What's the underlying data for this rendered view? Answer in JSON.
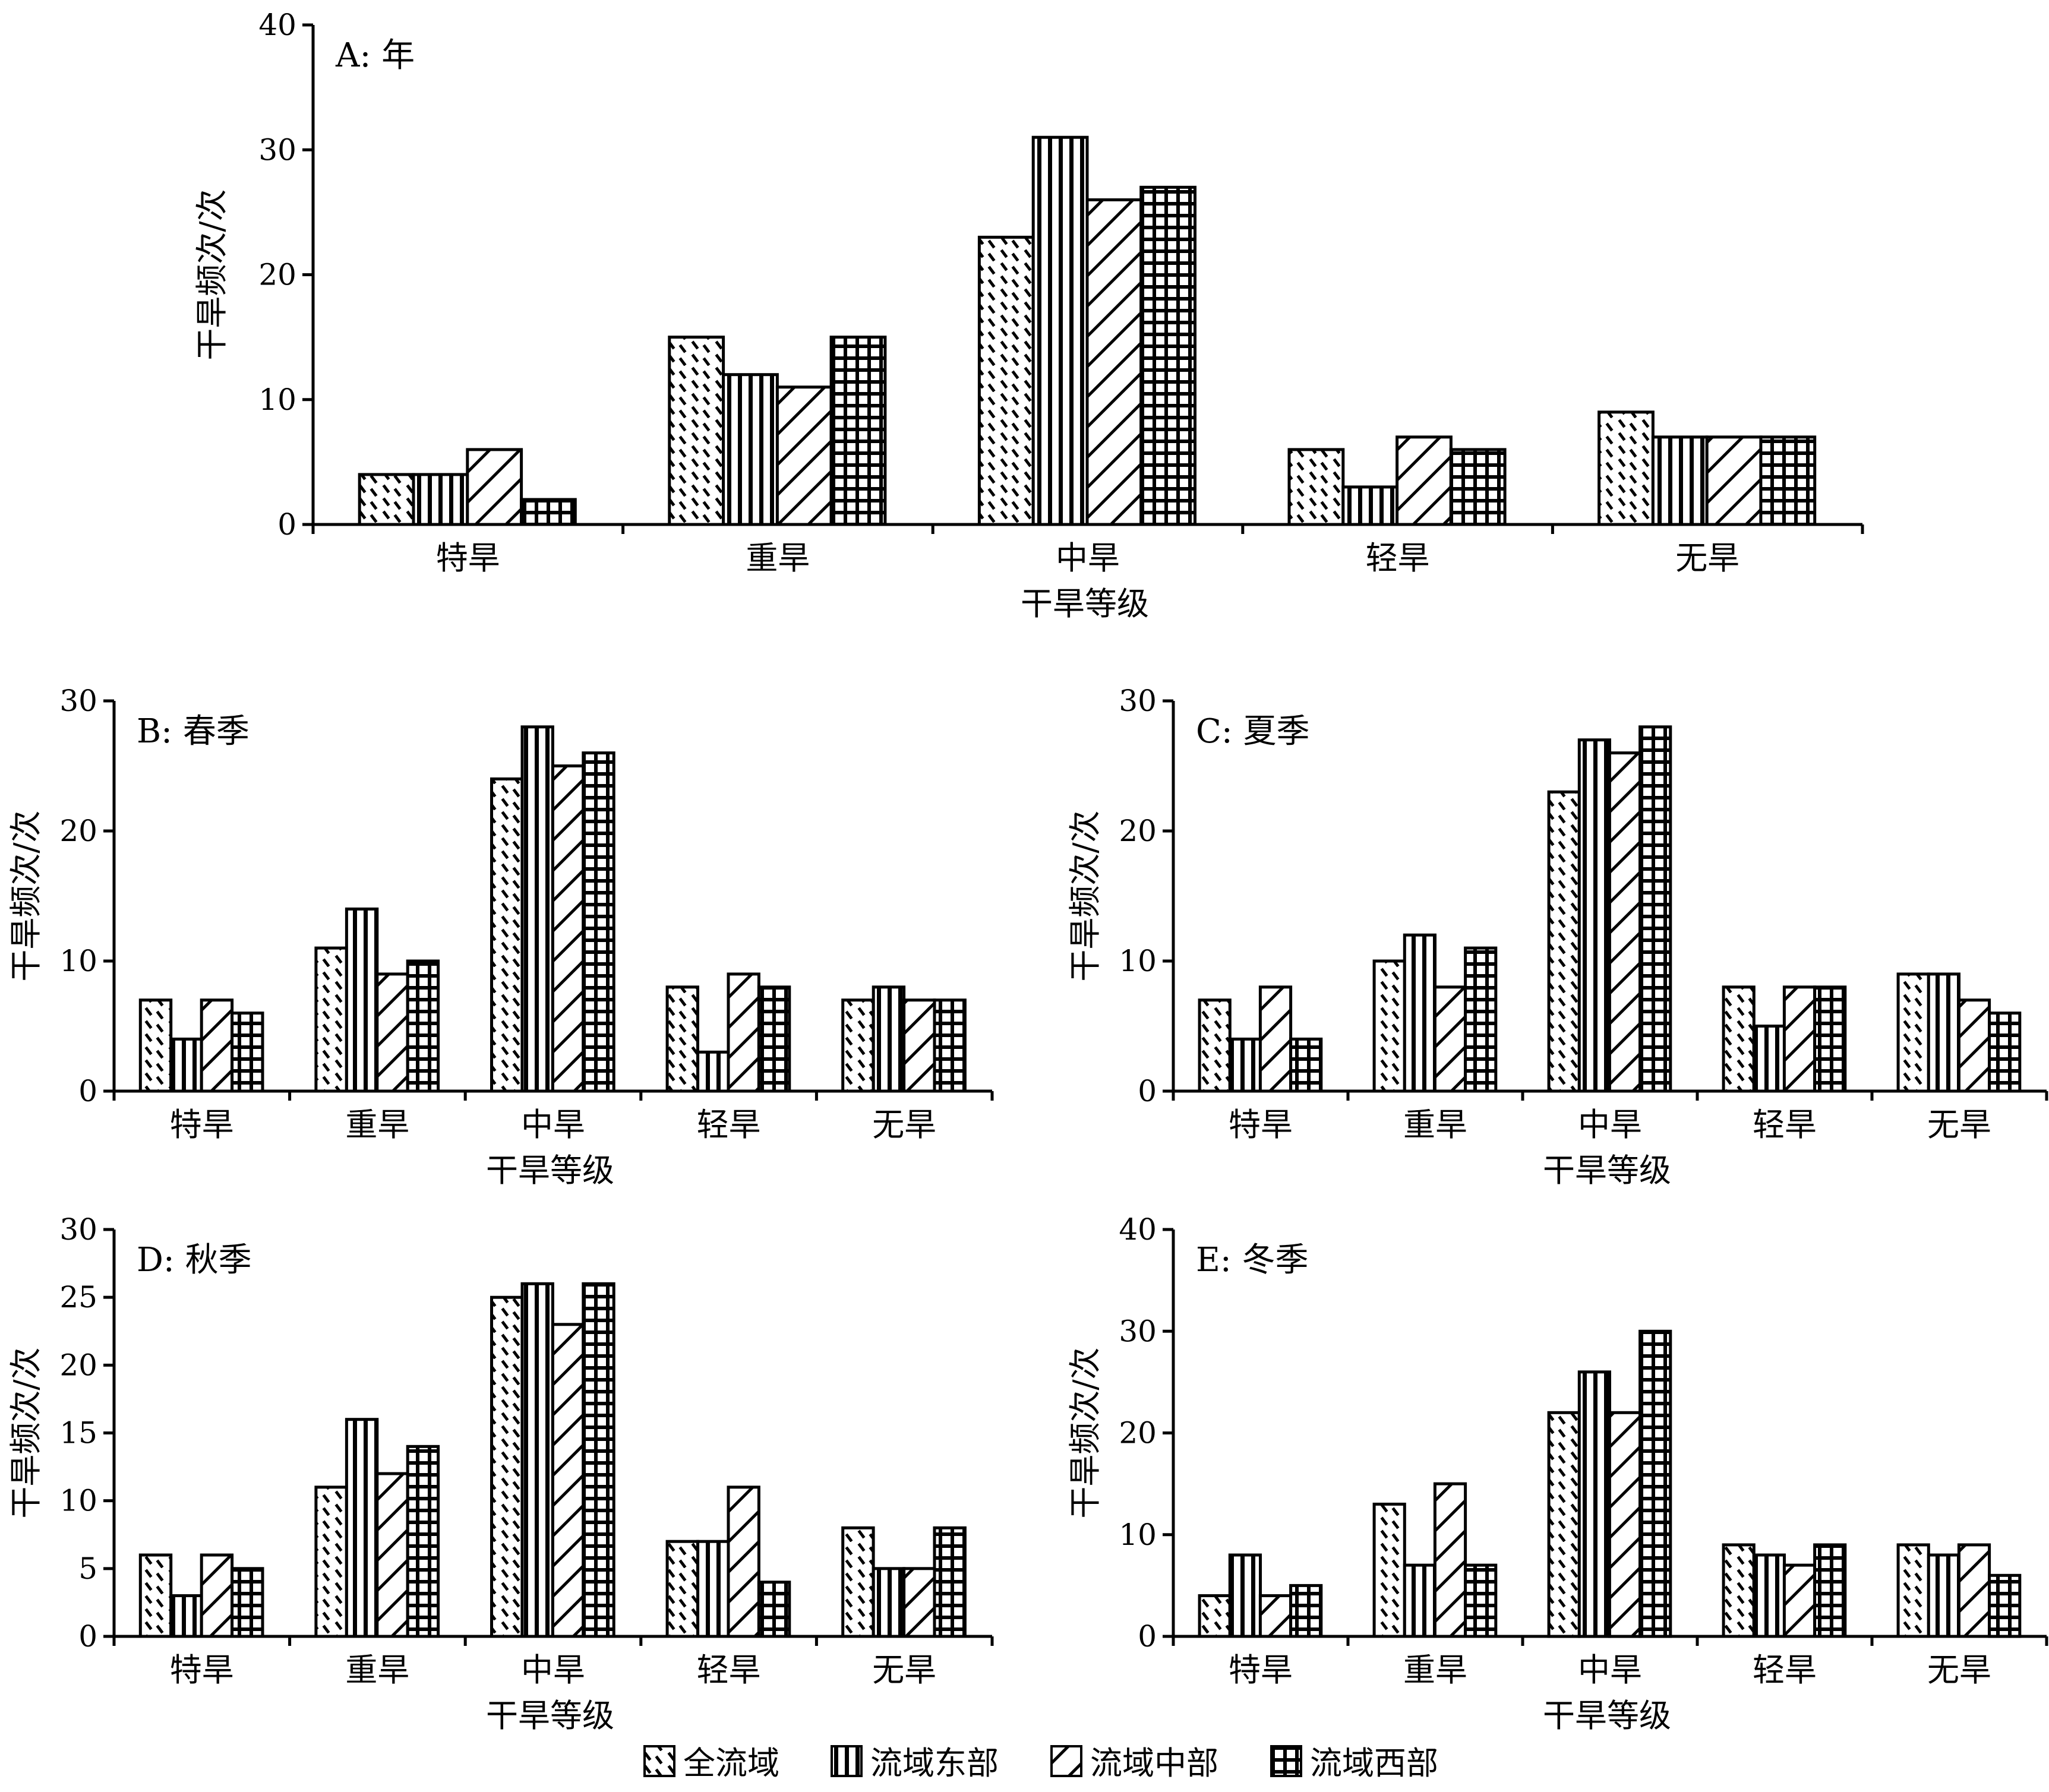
{
  "chart_data": [
    {
      "type": "bar",
      "title": "A: 年",
      "xlabel": "干旱等级",
      "ylabel": "干旱频次/次",
      "ylim": [
        0,
        40
      ],
      "yticks": [
        0,
        10,
        20,
        30,
        40
      ],
      "categories": [
        "特旱",
        "重旱",
        "中旱",
        "轻旱",
        "无旱"
      ],
      "series": [
        {
          "name": "全流域",
          "values": [
            4,
            15,
            23,
            6,
            9
          ]
        },
        {
          "name": "流域东部",
          "values": [
            4,
            12,
            31,
            3,
            7
          ]
        },
        {
          "name": "流域中部",
          "values": [
            6,
            11,
            26,
            7,
            7
          ]
        },
        {
          "name": "流域西部",
          "values": [
            2,
            15,
            27,
            6,
            7
          ]
        }
      ]
    },
    {
      "type": "bar",
      "title": "B: 春季",
      "xlabel": "干旱等级",
      "ylabel": "干旱频次/次",
      "ylim": [
        0,
        30
      ],
      "yticks": [
        0,
        10,
        20,
        30
      ],
      "categories": [
        "特旱",
        "重旱",
        "中旱",
        "轻旱",
        "无旱"
      ],
      "series": [
        {
          "name": "全流域",
          "values": [
            7,
            11,
            24,
            8,
            7
          ]
        },
        {
          "name": "流域东部",
          "values": [
            4,
            14,
            28,
            3,
            8
          ]
        },
        {
          "name": "流域中部",
          "values": [
            7,
            9,
            25,
            9,
            7
          ]
        },
        {
          "name": "流域西部",
          "values": [
            6,
            10,
            26,
            8,
            7
          ]
        }
      ]
    },
    {
      "type": "bar",
      "title": "C: 夏季",
      "xlabel": "干旱等级",
      "ylabel": "干旱频次/次",
      "ylim": [
        0,
        30
      ],
      "yticks": [
        0,
        10,
        20,
        30
      ],
      "categories": [
        "特旱",
        "重旱",
        "中旱",
        "轻旱",
        "无旱"
      ],
      "series": [
        {
          "name": "全流域",
          "values": [
            7,
            10,
            23,
            8,
            9
          ]
        },
        {
          "name": "流域东部",
          "values": [
            4,
            12,
            27,
            5,
            9
          ]
        },
        {
          "name": "流域中部",
          "values": [
            8,
            8,
            26,
            8,
            7
          ]
        },
        {
          "name": "流域西部",
          "values": [
            4,
            11,
            28,
            8,
            6
          ]
        }
      ]
    },
    {
      "type": "bar",
      "title": "D: 秋季",
      "xlabel": "干旱等级",
      "ylabel": "干旱频次/次",
      "ylim": [
        0,
        30
      ],
      "yticks": [
        0,
        5,
        10,
        15,
        20,
        25,
        30
      ],
      "categories": [
        "特旱",
        "重旱",
        "中旱",
        "轻旱",
        "无旱"
      ],
      "series": [
        {
          "name": "全流域",
          "values": [
            6,
            11,
            25,
            7,
            8
          ]
        },
        {
          "name": "流域东部",
          "values": [
            3,
            16,
            26,
            7,
            5
          ]
        },
        {
          "name": "流域中部",
          "values": [
            6,
            12,
            23,
            11,
            5
          ]
        },
        {
          "name": "流域西部",
          "values": [
            5,
            14,
            26,
            4,
            8
          ]
        }
      ]
    },
    {
      "type": "bar",
      "title": "E: 冬季",
      "xlabel": "干旱等级",
      "ylabel": "干旱频次/次",
      "ylim": [
        0,
        40
      ],
      "yticks": [
        0,
        10,
        20,
        30,
        40
      ],
      "categories": [
        "特旱",
        "重旱",
        "中旱",
        "轻旱",
        "无旱"
      ],
      "series": [
        {
          "name": "全流域",
          "values": [
            4,
            13,
            22,
            9,
            9
          ]
        },
        {
          "name": "流域东部",
          "values": [
            8,
            7,
            26,
            8,
            8
          ]
        },
        {
          "name": "流域中部",
          "values": [
            4,
            15,
            22,
            7,
            9
          ]
        },
        {
          "name": "流域西部",
          "values": [
            5,
            7,
            30,
            9,
            6
          ]
        }
      ]
    }
  ],
  "legend": {
    "items": [
      {
        "label": "全流域",
        "pattern": "dashed-diagonal"
      },
      {
        "label": "流域东部",
        "pattern": "vertical-lines"
      },
      {
        "label": "流域中部",
        "pattern": "diagonal-hatch"
      },
      {
        "label": "流域西部",
        "pattern": "grid"
      }
    ]
  }
}
